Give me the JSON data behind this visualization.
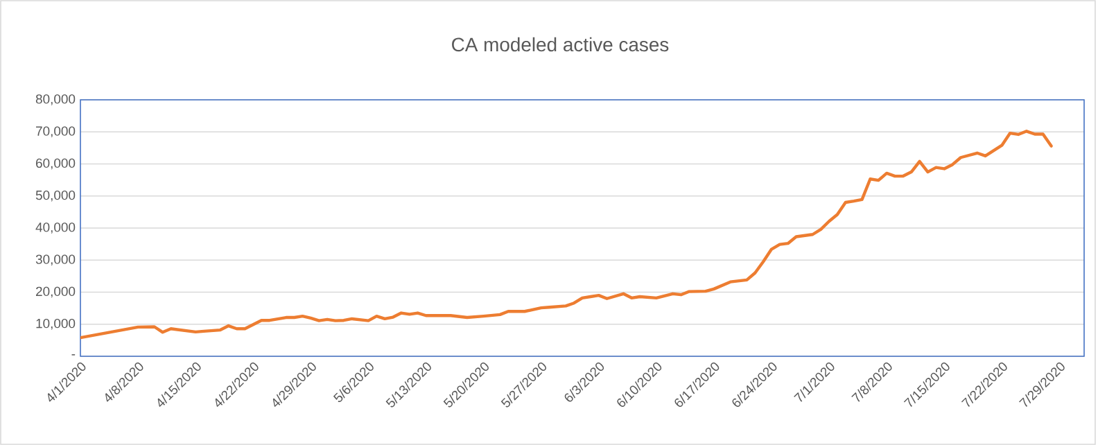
{
  "chart_data": {
    "type": "line",
    "title": "CA modeled active cases",
    "x": [
      "2020-04-01",
      "2020-04-08",
      "2020-04-10",
      "2020-04-11",
      "2020-04-12",
      "2020-04-15",
      "2020-04-16",
      "2020-04-18",
      "2020-04-19",
      "2020-04-20",
      "2020-04-21",
      "2020-04-23",
      "2020-04-24",
      "2020-04-26",
      "2020-04-27",
      "2020-04-28",
      "2020-04-29",
      "2020-04-30",
      "2020-05-01",
      "2020-05-02",
      "2020-05-03",
      "2020-05-04",
      "2020-05-06",
      "2020-05-07",
      "2020-05-08",
      "2020-05-09",
      "2020-05-10",
      "2020-05-11",
      "2020-05-12",
      "2020-05-13",
      "2020-05-16",
      "2020-05-18",
      "2020-05-20",
      "2020-05-22",
      "2020-05-23",
      "2020-05-25",
      "2020-05-27",
      "2020-05-28",
      "2020-05-30",
      "2020-05-31",
      "2020-06-01",
      "2020-06-02",
      "2020-06-03",
      "2020-06-04",
      "2020-06-06",
      "2020-06-07",
      "2020-06-08",
      "2020-06-10",
      "2020-06-12",
      "2020-06-13",
      "2020-06-14",
      "2020-06-16",
      "2020-06-17",
      "2020-06-19",
      "2020-06-21",
      "2020-06-22",
      "2020-06-23",
      "2020-06-24",
      "2020-06-25",
      "2020-06-26",
      "2020-06-27",
      "2020-06-29",
      "2020-06-30",
      "2020-07-01",
      "2020-07-02",
      "2020-07-03",
      "2020-07-04",
      "2020-07-05",
      "2020-07-06",
      "2020-07-07",
      "2020-07-08",
      "2020-07-09",
      "2020-07-10",
      "2020-07-11",
      "2020-07-12",
      "2020-07-13",
      "2020-07-14",
      "2020-07-15",
      "2020-07-16",
      "2020-07-17",
      "2020-07-19",
      "2020-07-20",
      "2020-07-22",
      "2020-07-23",
      "2020-07-24",
      "2020-07-25",
      "2020-07-26",
      "2020-07-27",
      "2020-07-28"
    ],
    "series": [
      {
        "color": "#ed7d31",
        "values": [
          5800,
          9100,
          9200,
          7500,
          8600,
          7600,
          7800,
          8200,
          9500,
          8600,
          8600,
          11200,
          11200,
          12100,
          12100,
          12500,
          11900,
          11100,
          11500,
          11100,
          11200,
          11700,
          11100,
          12500,
          11700,
          12200,
          13500,
          13100,
          13500,
          12700,
          12700,
          12100,
          12500,
          13000,
          14000,
          14000,
          15100,
          15300,
          15700,
          16600,
          18200,
          18600,
          19000,
          18000,
          19500,
          18200,
          18600,
          18200,
          19500,
          19200,
          20200,
          20300,
          21000,
          23200,
          23800,
          26000,
          29500,
          33400,
          34900,
          35200,
          37300,
          38000,
          39600,
          42100,
          44200,
          48000,
          48400,
          48900,
          55300,
          54900,
          57100,
          56200,
          56200,
          57500,
          60800,
          57500,
          58900,
          58500,
          59800,
          62000,
          63400,
          62500,
          65800,
          69600,
          69200,
          70200,
          69300,
          69300,
          65600
        ]
      }
    ],
    "xlim": [
      "2020-04-01",
      "2020-08-01"
    ],
    "xticks": [
      {
        "value": "2020-04-01",
        "label": "4/1/2020"
      },
      {
        "value": "2020-04-08",
        "label": "4/8/2020"
      },
      {
        "value": "2020-04-15",
        "label": "4/15/2020"
      },
      {
        "value": "2020-04-22",
        "label": "4/22/2020"
      },
      {
        "value": "2020-04-29",
        "label": "4/29/2020"
      },
      {
        "value": "2020-05-06",
        "label": "5/6/2020"
      },
      {
        "value": "2020-05-13",
        "label": "5/13/2020"
      },
      {
        "value": "2020-05-20",
        "label": "5/20/2020"
      },
      {
        "value": "2020-05-27",
        "label": "5/27/2020"
      },
      {
        "value": "2020-06-03",
        "label": "6/3/2020"
      },
      {
        "value": "2020-06-10",
        "label": "6/10/2020"
      },
      {
        "value": "2020-06-17",
        "label": "6/17/2020"
      },
      {
        "value": "2020-06-24",
        "label": "6/24/2020"
      },
      {
        "value": "2020-07-01",
        "label": "7/1/2020"
      },
      {
        "value": "2020-07-08",
        "label": "7/8/2020"
      },
      {
        "value": "2020-07-15",
        "label": "7/15/2020"
      },
      {
        "value": "2020-07-22",
        "label": "7/22/2020"
      },
      {
        "value": "2020-07-29",
        "label": "7/29/2020"
      }
    ],
    "ylim": [
      0,
      80000
    ],
    "yticks": [
      {
        "value": 0,
        "label": "-"
      },
      {
        "value": 10000,
        "label": "10,000"
      },
      {
        "value": 20000,
        "label": "20,000"
      },
      {
        "value": 30000,
        "label": "30,000"
      },
      {
        "value": 40000,
        "label": "40,000"
      },
      {
        "value": 50000,
        "label": "50,000"
      },
      {
        "value": 60000,
        "label": "60,000"
      },
      {
        "value": 70000,
        "label": "70,000"
      },
      {
        "value": 80000,
        "label": "80,000"
      }
    ],
    "grid": "y",
    "marker": "none",
    "line_style": "solid",
    "legend": false
  }
}
